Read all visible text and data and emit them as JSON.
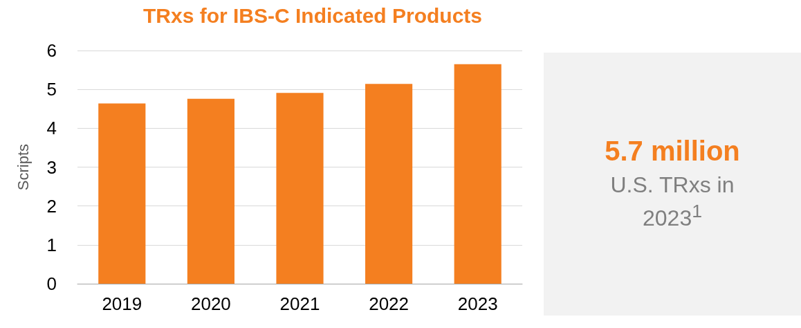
{
  "chart_data": {
    "type": "bar",
    "title": "TRxs for IBS-C Indicated Products",
    "ylabel": "Scripts",
    "categories": [
      "2019",
      "2020",
      "2021",
      "2022",
      "2023"
    ],
    "values": [
      4.64,
      4.76,
      4.91,
      5.14,
      5.65
    ],
    "color": "#f47f20",
    "ylim": [
      0,
      6
    ],
    "yticks": [
      0,
      1,
      2,
      3,
      4,
      5,
      6
    ],
    "grid": "y",
    "annotations": [
      "5.7 million",
      "U.S. TRxs in 2023$^{1}$"
    ]
  }
}
